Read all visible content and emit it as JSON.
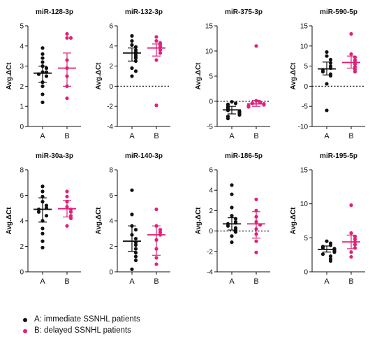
{
  "colors": {
    "A": "#111111",
    "B": "#e0217a",
    "axis": "#111111"
  },
  "legend": {
    "items": [
      {
        "group": "A",
        "label": "A: immediate SSNHL patients"
      },
      {
        "group": "B",
        "label": "B: delayed SSNHL patients"
      }
    ]
  },
  "chart_data": [
    {
      "type": "scatter",
      "title": "miR-128-3p",
      "ylabel": "Avg.ΔCt",
      "categories": [
        "A",
        "B"
      ],
      "ylim": [
        0,
        5
      ],
      "yticks": [
        0,
        1,
        2,
        3,
        4,
        5
      ],
      "zero_line": false,
      "series": [
        {
          "group": "A",
          "mean": 2.65,
          "sd_low": 2.2,
          "sd_high": 3.0,
          "values": [
            3.9,
            3.6,
            3.4,
            3.2,
            3.0,
            2.9,
            2.7,
            2.7,
            2.6,
            2.5,
            2.2,
            2.0,
            1.6,
            1.2
          ]
        },
        {
          "group": "B",
          "mean": 2.9,
          "sd_low": 2.0,
          "sd_high": 3.65,
          "values": [
            4.6,
            4.4,
            4.4,
            3.3,
            2.9,
            2.5,
            2.0,
            1.4
          ]
        }
      ]
    },
    {
      "type": "scatter",
      "title": "miR-132-3p",
      "ylabel": "Avg.ΔCt",
      "categories": [
        "A",
        "B"
      ],
      "ylim": [
        -4,
        6
      ],
      "yticks": [
        -4,
        -2,
        0,
        2,
        4,
        6
      ],
      "zero_line": true,
      "series": [
        {
          "group": "A",
          "mean": 3.3,
          "sd_low": 2.5,
          "sd_high": 3.8,
          "values": [
            5.0,
            4.5,
            4.1,
            3.9,
            3.6,
            3.4,
            3.2,
            3.0,
            2.8,
            2.5,
            1.8,
            1.5,
            1.0
          ]
        },
        {
          "group": "B",
          "mean": 3.8,
          "sd_low": 3.0,
          "sd_high": 4.2,
          "values": [
            4.9,
            4.5,
            4.3,
            4.1,
            3.9,
            3.6,
            3.3,
            2.6,
            -1.9
          ]
        }
      ]
    },
    {
      "type": "scatter",
      "title": "miR-375-3p",
      "ylabel": "Avg.ΔCt",
      "categories": [
        "A",
        "B"
      ],
      "ylim": [
        -5,
        15
      ],
      "yticks": [
        -5,
        0,
        5,
        10,
        15
      ],
      "zero_line": true,
      "series": [
        {
          "group": "A",
          "mean": -1.7,
          "sd_low": -2.5,
          "sd_high": -1.0,
          "values": [
            -0.1,
            -0.4,
            -0.6,
            -1.0,
            -1.3,
            -1.5,
            -1.8,
            -2.0,
            -2.2,
            -2.4,
            -2.7,
            -3.0,
            -3.4
          ]
        },
        {
          "group": "B",
          "mean": -0.5,
          "sd_low": -1.0,
          "sd_high": 0.2,
          "values": [
            11.0,
            0.1,
            -0.2,
            -0.4,
            -0.5,
            -0.7,
            -0.9,
            -1.1
          ]
        }
      ]
    },
    {
      "type": "scatter",
      "title": "miR-590-5p",
      "ylabel": "Avg.ΔCt",
      "categories": [
        "A",
        "B"
      ],
      "ylim": [
        -10,
        15
      ],
      "yticks": [
        -10,
        -5,
        0,
        5,
        10,
        15
      ],
      "zero_line": true,
      "series": [
        {
          "group": "A",
          "mean": 4.3,
          "sd_low": 2.8,
          "sd_high": 6.0,
          "values": [
            8.5,
            7.5,
            6.6,
            5.8,
            5.0,
            4.5,
            4.1,
            3.6,
            3.0,
            2.6,
            0.6,
            -6.0
          ]
        },
        {
          "group": "B",
          "mean": 5.9,
          "sd_low": 4.5,
          "sd_high": 7.5,
          "values": [
            13.0,
            8.0,
            7.2,
            6.5,
            6.0,
            5.5,
            4.8,
            4.2,
            3.6
          ]
        }
      ]
    },
    {
      "type": "scatter",
      "title": "miR-30a-3p",
      "ylabel": "Avg.ΔCt",
      "categories": [
        "A",
        "B"
      ],
      "ylim": [
        0,
        8
      ],
      "yticks": [
        0,
        2,
        4,
        6,
        8
      ],
      "zero_line": false,
      "series": [
        {
          "group": "A",
          "mean": 4.9,
          "sd_low": 3.9,
          "sd_high": 5.8,
          "values": [
            6.7,
            6.3,
            5.9,
            5.5,
            5.2,
            5.0,
            4.9,
            4.7,
            4.4,
            4.0,
            3.4,
            3.0,
            2.4,
            1.9
          ]
        },
        {
          "group": "B",
          "mean": 4.95,
          "sd_low": 4.3,
          "sd_high": 5.6,
          "values": [
            6.3,
            5.9,
            5.5,
            5.1,
            4.9,
            4.7,
            4.4,
            4.2,
            3.6
          ]
        }
      ]
    },
    {
      "type": "scatter",
      "title": "miR-140-3p",
      "ylabel": "Avg.ΔCt",
      "categories": [
        "A",
        "B"
      ],
      "ylim": [
        0,
        8
      ],
      "yticks": [
        0,
        2,
        4,
        6,
        8
      ],
      "zero_line": false,
      "series": [
        {
          "group": "A",
          "mean": 2.4,
          "sd_low": 1.6,
          "sd_high": 3.6,
          "values": [
            6.4,
            4.5,
            3.6,
            3.3,
            2.9,
            2.6,
            2.3,
            2.1,
            1.8,
            1.5,
            1.2,
            0.9,
            0.2
          ]
        },
        {
          "group": "B",
          "mean": 2.9,
          "sd_low": 1.3,
          "sd_high": 3.6,
          "values": [
            4.9,
            3.6,
            3.3,
            3.1,
            2.9,
            2.5,
            1.8,
            1.1,
            0.6
          ]
        }
      ]
    },
    {
      "type": "scatter",
      "title": "miR-186-5p",
      "ylabel": "Avg.ΔCt",
      "categories": [
        "A",
        "B"
      ],
      "ylim": [
        -4,
        6
      ],
      "yticks": [
        -4,
        -2,
        0,
        2,
        4,
        6
      ],
      "zero_line": true,
      "series": [
        {
          "group": "A",
          "mean": 0.7,
          "sd_low": 0.1,
          "sd_high": 1.3,
          "values": [
            4.5,
            3.6,
            2.3,
            1.5,
            1.2,
            0.9,
            0.8,
            0.7,
            0.5,
            0.3,
            0.1,
            -0.1,
            -0.5,
            -1.1
          ]
        },
        {
          "group": "B",
          "mean": 0.7,
          "sd_low": -0.7,
          "sd_high": 1.9,
          "values": [
            3.1,
            2.0,
            1.4,
            0.9,
            0.6,
            0.2,
            -0.3,
            -1.0,
            -2.1
          ]
        }
      ]
    },
    {
      "type": "scatter",
      "title": "miR-195-5p",
      "ylabel": "Avg.ΔCt",
      "categories": [
        "A",
        "B"
      ],
      "ylim": [
        0,
        15
      ],
      "yticks": [
        0,
        5,
        10,
        15
      ],
      "zero_line": false,
      "series": [
        {
          "group": "A",
          "mean": 3.3,
          "sd_low": 2.9,
          "sd_high": 3.8,
          "values": [
            4.5,
            4.2,
            3.9,
            3.7,
            3.5,
            3.4,
            3.3,
            3.1,
            2.9,
            2.6,
            2.3,
            1.9,
            1.6
          ]
        },
        {
          "group": "B",
          "mean": 4.4,
          "sd_low": 3.4,
          "sd_high": 5.4,
          "values": [
            9.8,
            5.7,
            5.2,
            4.8,
            4.4,
            4.0,
            3.5,
            2.9,
            2.2
          ]
        }
      ]
    }
  ]
}
